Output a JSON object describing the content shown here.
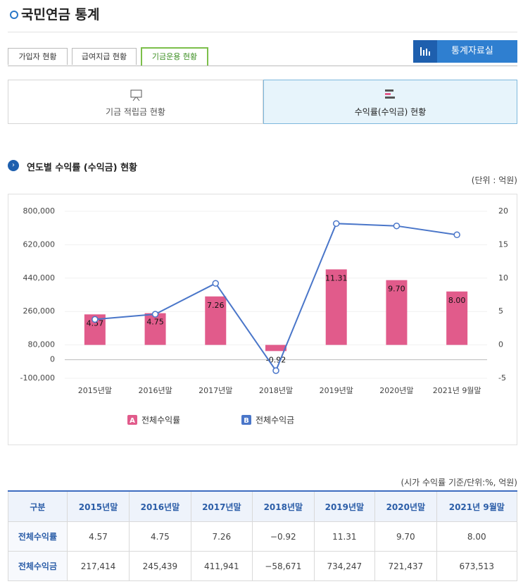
{
  "header": {
    "title": "국민연금 통계",
    "button": "통계자료실"
  },
  "tabs": [
    "가입자 현황",
    "급여지급 현황",
    "기금운용 현황"
  ],
  "subtabs": [
    "기금 적립금 현황",
    "수익률(수익금) 현황"
  ],
  "section": {
    "title": "연도별 수익률 (수익금) 현황",
    "unit": "(단위 : 억원)"
  },
  "chart_data": {
    "type": "combo",
    "categories": [
      "2015년말",
      "2016년말",
      "2017년말",
      "2018년말",
      "2019년말",
      "2020년말",
      "2021년 9월말"
    ],
    "series": [
      {
        "name": "전체수익률",
        "badge": "A",
        "type": "bar",
        "axis": "y2",
        "color": "#e15b8b",
        "values": [
          4.57,
          4.75,
          7.26,
          -0.92,
          11.31,
          9.7,
          8.0
        ],
        "value_labels": [
          "4.57",
          "4.75",
          "7.26",
          "-0.92",
          "11.31",
          "9.70",
          "8.00"
        ]
      },
      {
        "name": "전체수익금",
        "badge": "B",
        "type": "line",
        "color": "#4a76c9",
        "values": [
          217414,
          245439,
          411941,
          -58671,
          734247,
          721437,
          673513
        ]
      }
    ],
    "ylim": [
      -100000,
      800000
    ],
    "yticks": [
      {
        "value": -100000,
        "label": "-100,000"
      },
      0,
      {
        "value": 80000,
        "label": "80,000"
      },
      {
        "value": 260000,
        "label": "260,000"
      },
      {
        "value": 440000,
        "label": "440,000"
      },
      {
        "value": 620000,
        "label": "620,000"
      },
      {
        "value": 800000,
        "label": "800,000"
      }
    ],
    "y2lim": [
      -5,
      20
    ],
    "y2ticks": [
      -5,
      0,
      5,
      10,
      15,
      20
    ],
    "grid": true
  },
  "table": {
    "note": "(시가 수익률 기준/단위:%, 억원)",
    "header": [
      "구분",
      "2015년말",
      "2016년말",
      "2017년말",
      "2018년말",
      "2019년말",
      "2020년말",
      "2021년 9월말"
    ],
    "rows": [
      [
        "전체수익률",
        "4.57",
        "4.75",
        "7.26",
        "−0.92",
        "11.31",
        "9.70",
        "8.00"
      ],
      [
        "전체수익금",
        "217,414",
        "245,439",
        "411,941",
        "−58,671",
        "734,247",
        "721,437",
        "673,513"
      ]
    ]
  }
}
